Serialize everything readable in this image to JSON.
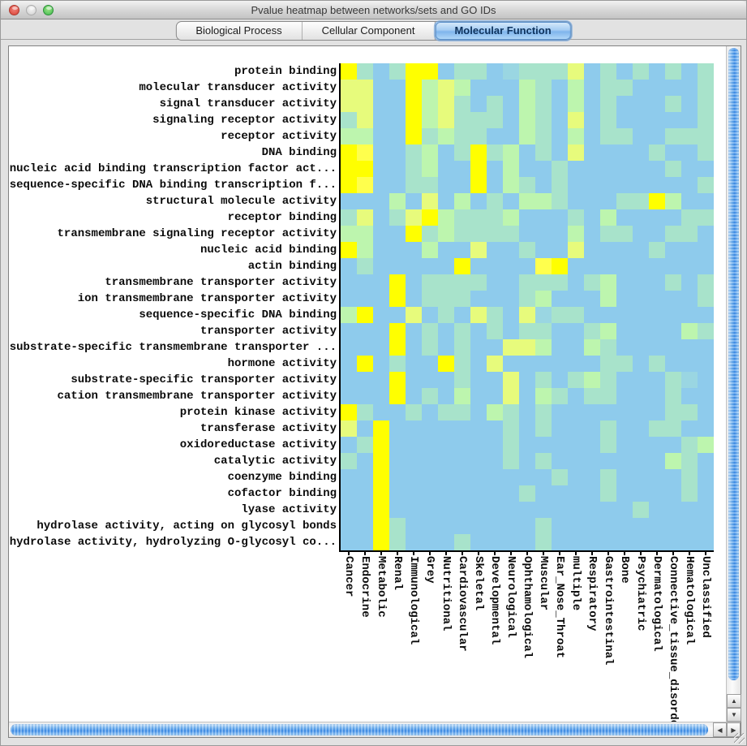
{
  "window": {
    "title": "Pvalue heatmap between networks/sets and GO IDs"
  },
  "titlebar_buttons": [
    {
      "name": "close-button",
      "color": "#d93f33"
    },
    {
      "name": "minimize-button",
      "color": "#cfcfcf"
    },
    {
      "name": "zoom-button",
      "color": "#3cb94c"
    }
  ],
  "tabs": [
    {
      "label": "Biological Process",
      "selected": false
    },
    {
      "label": "Cellular Component",
      "selected": false
    },
    {
      "label": "Molecular Function",
      "selected": true
    }
  ],
  "icons": {
    "up": "▲",
    "down": "▼",
    "left": "◀",
    "right": "▶"
  },
  "chart_data": {
    "type": "heatmap",
    "title": "Pvalue heatmap between networks/sets and GO IDs",
    "rows": [
      "protein binding",
      "molecular transducer activity",
      "signal transducer activity",
      "signaling receptor activity",
      "receptor activity",
      "DNA binding",
      "nucleic acid binding transcription factor act...",
      "sequence-specific DNA binding transcription f...",
      "structural molecule activity",
      "receptor binding",
      "transmembrane signaling receptor activity",
      "nucleic acid binding",
      "actin binding",
      "transmembrane transporter activity",
      "ion transmembrane transporter activity",
      "sequence-specific DNA binding",
      "transporter activity",
      "substrate-specific transmembrane transporter ...",
      "hormone activity",
      "substrate-specific transporter activity",
      "cation transmembrane transporter activity",
      "protein kinase activity",
      "transferase activity",
      "oxidoreductase activity",
      "catalytic activity",
      "coenzyme binding",
      "cofactor binding",
      "lyase activity",
      "hydrolase activity, acting on glycosyl bonds",
      "hydrolase activity, hydrolyzing O-glycosyl co..."
    ],
    "columns": [
      "Cancer",
      "Endocrine",
      "Metabolic",
      "Renal",
      "Immunological",
      "Grey",
      "Nutritional",
      "Cardiovascular",
      "Skeletal",
      "Developmental",
      "Neurological",
      "Ophthamological",
      "Muscular",
      "Ear_Nose_Throat",
      "multiple",
      "Respiratory",
      "Gastrointestinal",
      "Bone",
      "Psychiatric",
      "Dermatological",
      "Connective_tissue_disorder",
      "Hematological",
      "Unclassified"
    ],
    "palette": {
      "0": "#8ECBEC",
      "1": "#9AD6E2",
      "2": "#A8E3CB",
      "3": "#BDF5AE",
      "4": "#E7FB7C",
      "5": "#FFFF4D",
      "6": "#FFFF00"
    },
    "values": [
      [
        6,
        2,
        0,
        2,
        6,
        6,
        0,
        2,
        2,
        0,
        1,
        2,
        2,
        2,
        4,
        0,
        2,
        0,
        2,
        0,
        2,
        0,
        2
      ],
      [
        4,
        4,
        0,
        0,
        6,
        3,
        4,
        3,
        0,
        0,
        0,
        3,
        2,
        0,
        3,
        0,
        2,
        2,
        0,
        0,
        0,
        0,
        2
      ],
      [
        4,
        4,
        0,
        0,
        6,
        3,
        4,
        2,
        0,
        2,
        0,
        3,
        2,
        0,
        3,
        0,
        2,
        0,
        0,
        0,
        2,
        0,
        2
      ],
      [
        2,
        4,
        0,
        0,
        6,
        3,
        4,
        2,
        2,
        2,
        0,
        3,
        2,
        0,
        4,
        0,
        2,
        0,
        0,
        0,
        0,
        0,
        2
      ],
      [
        3,
        3,
        0,
        0,
        6,
        2,
        3,
        2,
        2,
        0,
        0,
        3,
        2,
        0,
        3,
        0,
        2,
        2,
        0,
        0,
        2,
        2,
        2
      ],
      [
        6,
        5,
        0,
        0,
        2,
        3,
        0,
        2,
        6,
        2,
        3,
        0,
        2,
        0,
        4,
        0,
        0,
        0,
        0,
        2,
        0,
        0,
        2
      ],
      [
        6,
        6,
        0,
        0,
        2,
        3,
        0,
        0,
        6,
        0,
        3,
        0,
        0,
        2,
        0,
        0,
        0,
        0,
        0,
        0,
        2,
        0,
        0
      ],
      [
        6,
        5,
        0,
        0,
        2,
        2,
        0,
        0,
        6,
        0,
        3,
        2,
        0,
        2,
        0,
        0,
        0,
        0,
        0,
        0,
        0,
        0,
        2
      ],
      [
        0,
        0,
        0,
        3,
        0,
        4,
        0,
        3,
        0,
        2,
        0,
        3,
        3,
        2,
        0,
        0,
        0,
        2,
        2,
        6,
        3,
        0,
        0
      ],
      [
        2,
        4,
        0,
        2,
        4,
        6,
        3,
        2,
        2,
        2,
        3,
        0,
        0,
        0,
        2,
        0,
        3,
        0,
        0,
        0,
        0,
        2,
        2
      ],
      [
        3,
        3,
        0,
        0,
        6,
        2,
        3,
        2,
        2,
        2,
        2,
        0,
        0,
        0,
        3,
        0,
        2,
        2,
        0,
        0,
        2,
        2,
        0
      ],
      [
        6,
        3,
        0,
        0,
        0,
        3,
        0,
        0,
        4,
        0,
        0,
        2,
        0,
        0,
        4,
        0,
        0,
        0,
        0,
        2,
        0,
        0,
        0
      ],
      [
        0,
        2,
        0,
        0,
        0,
        0,
        0,
        6,
        0,
        0,
        0,
        0,
        5,
        6,
        0,
        0,
        0,
        0,
        0,
        0,
        0,
        0,
        0
      ],
      [
        0,
        0,
        0,
        6,
        0,
        2,
        2,
        2,
        2,
        0,
        0,
        2,
        2,
        2,
        0,
        2,
        3,
        0,
        0,
        0,
        2,
        0,
        2
      ],
      [
        0,
        0,
        0,
        6,
        0,
        2,
        2,
        2,
        0,
        0,
        0,
        2,
        3,
        0,
        0,
        0,
        3,
        0,
        0,
        0,
        0,
        0,
        2
      ],
      [
        3,
        6,
        0,
        0,
        4,
        0,
        2,
        0,
        4,
        2,
        0,
        4,
        1,
        2,
        2,
        0,
        0,
        0,
        0,
        0,
        0,
        0,
        0
      ],
      [
        0,
        0,
        0,
        6,
        0,
        2,
        0,
        2,
        0,
        2,
        0,
        2,
        2,
        0,
        0,
        2,
        3,
        0,
        0,
        0,
        0,
        3,
        2
      ],
      [
        0,
        0,
        0,
        6,
        0,
        2,
        0,
        2,
        0,
        0,
        4,
        4,
        3,
        0,
        0,
        3,
        2,
        0,
        0,
        0,
        0,
        0,
        0
      ],
      [
        0,
        6,
        0,
        2,
        0,
        0,
        6,
        2,
        0,
        4,
        0,
        0,
        0,
        0,
        0,
        0,
        2,
        2,
        0,
        2,
        0,
        0,
        0
      ],
      [
        0,
        0,
        0,
        6,
        0,
        0,
        0,
        2,
        0,
        0,
        4,
        0,
        2,
        0,
        2,
        3,
        2,
        0,
        0,
        0,
        2,
        1,
        0
      ],
      [
        0,
        0,
        0,
        6,
        0,
        2,
        0,
        3,
        0,
        0,
        4,
        0,
        3,
        2,
        0,
        2,
        2,
        0,
        0,
        0,
        2,
        0,
        0
      ],
      [
        6,
        2,
        0,
        0,
        2,
        0,
        2,
        2,
        0,
        3,
        2,
        0,
        2,
        0,
        0,
        0,
        0,
        0,
        0,
        0,
        2,
        2,
        0
      ],
      [
        4,
        0,
        6,
        0,
        0,
        0,
        0,
        0,
        0,
        0,
        2,
        0,
        2,
        0,
        0,
        0,
        2,
        0,
        0,
        2,
        2,
        0,
        0
      ],
      [
        0,
        2,
        6,
        0,
        0,
        0,
        0,
        0,
        0,
        0,
        2,
        0,
        0,
        0,
        0,
        0,
        2,
        0,
        0,
        0,
        0,
        2,
        3
      ],
      [
        2,
        0,
        6,
        0,
        0,
        0,
        0,
        0,
        0,
        0,
        2,
        0,
        2,
        0,
        0,
        0,
        0,
        0,
        0,
        0,
        3,
        2,
        0
      ],
      [
        0,
        0,
        6,
        0,
        0,
        0,
        0,
        0,
        0,
        0,
        0,
        0,
        0,
        2,
        0,
        0,
        2,
        0,
        0,
        0,
        0,
        2,
        0
      ],
      [
        0,
        0,
        6,
        0,
        0,
        0,
        0,
        0,
        0,
        0,
        0,
        2,
        0,
        0,
        0,
        0,
        2,
        0,
        0,
        0,
        0,
        2,
        0
      ],
      [
        0,
        0,
        6,
        0,
        0,
        0,
        0,
        0,
        0,
        0,
        0,
        0,
        0,
        0,
        0,
        0,
        0,
        0,
        2,
        0,
        0,
        0,
        0
      ],
      [
        0,
        0,
        6,
        2,
        0,
        0,
        0,
        0,
        0,
        0,
        0,
        0,
        2,
        0,
        0,
        0,
        0,
        0,
        0,
        0,
        0,
        0,
        0
      ],
      [
        0,
        0,
        6,
        2,
        0,
        0,
        0,
        2,
        0,
        0,
        0,
        0,
        2,
        0,
        0,
        0,
        0,
        0,
        0,
        0,
        0,
        0,
        0
      ]
    ]
  }
}
